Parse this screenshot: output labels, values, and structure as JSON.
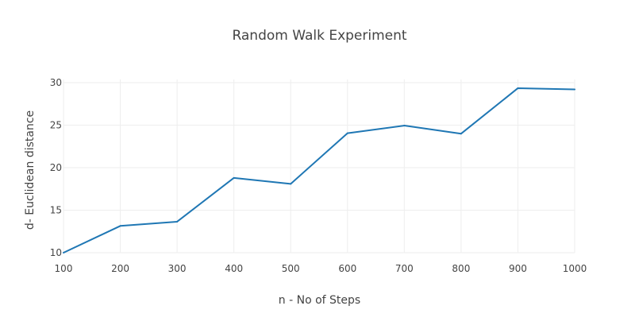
{
  "chart_data": {
    "type": "line",
    "title": "Random Walk Experiment",
    "xlabel": "n - No of Steps",
    "ylabel": "d- Euclidean distance",
    "x": [
      100,
      200,
      300,
      400,
      500,
      600,
      700,
      800,
      900,
      1000
    ],
    "series": [
      {
        "values": [
          10.0,
          13.15,
          13.65,
          18.8,
          18.1,
          24.05,
          24.95,
          24.0,
          29.35,
          29.2
        ],
        "color": "#1f77b4"
      }
    ],
    "xlim": [
      100,
      1000
    ],
    "ylim": [
      10,
      30
    ],
    "x_ticks": [
      100,
      200,
      300,
      400,
      500,
      600,
      700,
      800,
      900,
      1000
    ],
    "y_ticks": [
      10,
      15,
      20,
      25,
      30
    ],
    "grid": true,
    "legend": "none"
  }
}
